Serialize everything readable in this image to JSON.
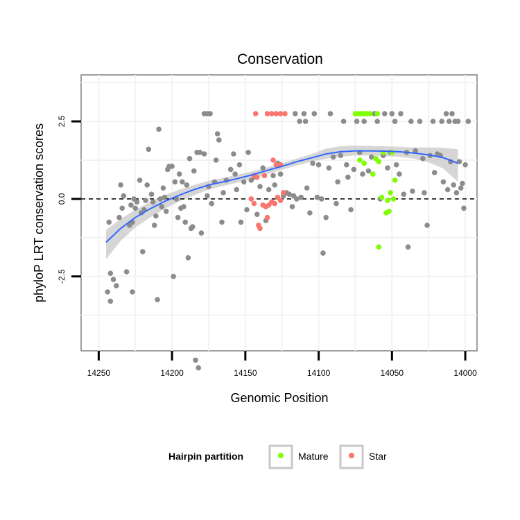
{
  "chart_data": {
    "type": "scatter",
    "title": "Conservation",
    "xlabel": "Genomic Position",
    "ylabel": "phyloP LRT conservation scores",
    "xlim": [
      14262,
      13992
    ],
    "ylim": [
      -4.9,
      4.0
    ],
    "x_reversed": true,
    "x_ticks": [
      14250,
      14200,
      14150,
      14100,
      14050,
      14000
    ],
    "x_tick_labels": [
      "14250",
      "14200",
      "14150",
      "14100",
      "14050",
      "14000"
    ],
    "y_ticks": [
      -2.5,
      0.0,
      2.5
    ],
    "y_tick_labels": [
      "-2.5",
      "0.0",
      "2.5"
    ],
    "reference_line": {
      "y": 0,
      "style": "dashed",
      "color": "#000000"
    },
    "legend": {
      "title": "Hairpin partition",
      "position": "bottom",
      "entries": [
        {
          "label": "Mature",
          "color": "#7fff00"
        },
        {
          "label": "Star",
          "color": "#f8766d"
        }
      ]
    },
    "colors": {
      "other": "#8c8c8c",
      "Mature": "#7fff00",
      "Star": "#f8766d",
      "smooth": "#3366ff",
      "ribbon": "#c8c8c8",
      "grid": "#f2f2f2",
      "frame": "#7f7f7f"
    },
    "smooth": {
      "x": [
        14245,
        14235,
        14225,
        14215,
        14205,
        14195,
        14185,
        14175,
        14165,
        14155,
        14145,
        14135,
        14125,
        14115,
        14105,
        14095,
        14085,
        14075,
        14065,
        14055,
        14045,
        14035,
        14025,
        14015,
        14005
      ],
      "y": [
        -1.4,
        -0.95,
        -0.6,
        -0.32,
        -0.08,
        0.12,
        0.3,
        0.45,
        0.55,
        0.66,
        0.78,
        0.92,
        1.05,
        1.2,
        1.32,
        1.45,
        1.52,
        1.55,
        1.55,
        1.54,
        1.52,
        1.48,
        1.42,
        1.33,
        1.15
      ],
      "upper": [
        -1.0,
        -0.65,
        -0.35,
        -0.1,
        0.12,
        0.3,
        0.45,
        0.58,
        0.68,
        0.78,
        0.89,
        1.02,
        1.15,
        1.3,
        1.44,
        1.62,
        1.7,
        1.72,
        1.71,
        1.7,
        1.68,
        1.66,
        1.66,
        1.65,
        1.6
      ],
      "lower": [
        -1.95,
        -1.35,
        -0.92,
        -0.6,
        -0.32,
        -0.08,
        0.12,
        0.3,
        0.42,
        0.53,
        0.66,
        0.8,
        0.94,
        1.08,
        1.2,
        1.3,
        1.36,
        1.4,
        1.4,
        1.38,
        1.36,
        1.3,
        1.18,
        0.98,
        0.55
      ]
    },
    "series": [
      {
        "name": "Other",
        "points": [
          [
            14244,
            -3.0
          ],
          [
            14242,
            -2.4
          ],
          [
            14240,
            -2.6
          ],
          [
            14238,
            -2.8
          ],
          [
            14242,
            -3.3
          ],
          [
            14243,
            -0.75
          ],
          [
            14236,
            -0.6
          ],
          [
            14234,
            -0.3
          ],
          [
            14233,
            0.1
          ],
          [
            14235,
            0.45
          ],
          [
            14231,
            -2.35
          ],
          [
            14229,
            -0.85
          ],
          [
            14228,
            -0.2
          ],
          [
            14227,
            -0.75
          ],
          [
            14226,
            0.0
          ],
          [
            14225,
            -0.3
          ],
          [
            14224,
            -0.1
          ],
          [
            14227,
            -3.0
          ],
          [
            14222,
            0.6
          ],
          [
            14221,
            -0.45
          ],
          [
            14220,
            -1.7
          ],
          [
            14219,
            -0.35
          ],
          [
            14218,
            -0.05
          ],
          [
            14217,
            0.45
          ],
          [
            14216,
            1.6
          ],
          [
            14214,
            0.15
          ],
          [
            14213,
            -0.1
          ],
          [
            14212,
            -0.85
          ],
          [
            14211,
            -0.55
          ],
          [
            14210,
            -3.25
          ],
          [
            14209,
            2.25
          ],
          [
            14208,
            0.0
          ],
          [
            14207,
            -0.25
          ],
          [
            14206,
            0.35
          ],
          [
            14205,
            0.05
          ],
          [
            14204,
            -0.4
          ],
          [
            14203,
            0.95
          ],
          [
            14202,
            1.05
          ],
          [
            14200,
            1.05
          ],
          [
            14199,
            -2.5
          ],
          [
            14198,
            0.55
          ],
          [
            14197,
            0.0
          ],
          [
            14196,
            -0.6
          ],
          [
            14195,
            0.8
          ],
          [
            14194,
            -0.3
          ],
          [
            14193,
            0.55
          ],
          [
            14192,
            -0.25
          ],
          [
            14191,
            -0.75
          ],
          [
            14190,
            0.45
          ],
          [
            14189,
            -1.9
          ],
          [
            14188,
            1.3
          ],
          [
            14187,
            -0.95
          ],
          [
            14186,
            -0.9
          ],
          [
            14185,
            0.9
          ],
          [
            14184,
            -5.2
          ],
          [
            14183,
            1.5
          ],
          [
            14182,
            -5.45
          ],
          [
            14181,
            1.5
          ],
          [
            14180,
            -1.1
          ],
          [
            14178,
            1.45
          ],
          [
            14178,
            2.75
          ],
          [
            14176,
            2.75
          ],
          [
            14174,
            2.75
          ],
          [
            14176,
            0.1
          ],
          [
            14175,
            0.4
          ],
          [
            14173,
            -0.15
          ],
          [
            14171,
            0.55
          ],
          [
            14170,
            1.25
          ],
          [
            14169,
            2.1
          ],
          [
            14168,
            1.9
          ],
          [
            14166,
            -0.75
          ],
          [
            14165,
            0.2
          ],
          [
            14163,
            0.6
          ],
          [
            14160,
            0.95
          ],
          [
            14158,
            1.45
          ],
          [
            14157,
            0.8
          ],
          [
            14156,
            0.3
          ],
          [
            14154,
            1.1
          ],
          [
            14153,
            -0.75
          ],
          [
            14151,
            0.55
          ],
          [
            14149,
            -0.35
          ],
          [
            14148,
            1.5
          ],
          [
            14146,
            0.6
          ],
          [
            14144,
            0.7
          ],
          [
            14142,
            -0.5
          ],
          [
            14140,
            0.4
          ],
          [
            14138,
            1.0
          ],
          [
            14136,
            -0.7
          ],
          [
            14134,
            0.3
          ],
          [
            14131,
            0.75
          ],
          [
            14130,
            0.45
          ],
          [
            14128,
            1.15
          ],
          [
            14126,
            0.8
          ],
          [
            14124,
            0.1
          ],
          [
            14122,
            0.2
          ],
          [
            14120,
            0.15
          ],
          [
            14118,
            -0.25
          ],
          [
            14117,
            0.1
          ],
          [
            14116,
            2.75
          ],
          [
            14115,
            0.0
          ],
          [
            14113,
            2.5
          ],
          [
            14112,
            0.05
          ],
          [
            14110,
            2.75
          ],
          [
            14109,
            2.5
          ],
          [
            14108,
            0.35
          ],
          [
            14106,
            -0.45
          ],
          [
            14104,
            1.15
          ],
          [
            14103,
            2.75
          ],
          [
            14101,
            0.05
          ],
          [
            14100,
            1.1
          ],
          [
            14098,
            0.0
          ],
          [
            14097,
            -1.75
          ],
          [
            14095,
            -0.6
          ],
          [
            14093,
            1.0
          ],
          [
            14092,
            2.75
          ],
          [
            14090,
            1.35
          ],
          [
            14088,
            -0.15
          ],
          [
            14087,
            0.55
          ],
          [
            14085,
            1.4
          ],
          [
            14083,
            2.5
          ],
          [
            14081,
            1.1
          ],
          [
            14080,
            0.7
          ],
          [
            14078,
            -0.35
          ],
          [
            14076,
            0.95
          ],
          [
            14074,
            2.5
          ],
          [
            14072,
            1.5
          ],
          [
            14070,
            0.8
          ],
          [
            14069,
            2.5
          ],
          [
            14066,
            0.9
          ],
          [
            14064,
            1.35
          ],
          [
            14062,
            2.75
          ],
          [
            14060,
            2.5
          ],
          [
            14058,
            0.0
          ],
          [
            14056,
            1.4
          ],
          [
            14055,
            2.75
          ],
          [
            14053,
            1.0
          ],
          [
            14051,
            1.5
          ],
          [
            14050,
            2.75
          ],
          [
            14048,
            2.5
          ],
          [
            14047,
            1.1
          ],
          [
            14045,
            0.8
          ],
          [
            14044,
            2.75
          ],
          [
            14042,
            0.15
          ],
          [
            14040,
            1.5
          ],
          [
            14039,
            -1.55
          ],
          [
            14037,
            2.5
          ],
          [
            14036,
            0.25
          ],
          [
            14034,
            1.55
          ],
          [
            14031,
            2.5
          ],
          [
            14029,
            1.3
          ],
          [
            14028,
            0.2
          ],
          [
            14026,
            -0.85
          ],
          [
            14024,
            1.4
          ],
          [
            14022,
            2.5
          ],
          [
            14021,
            0.85
          ],
          [
            14019,
            1.45
          ],
          [
            14017,
            1.4
          ],
          [
            14016,
            2.5
          ],
          [
            14015,
            0.55
          ],
          [
            14013,
            2.75
          ],
          [
            14012,
            0.3
          ],
          [
            14011,
            2.5
          ],
          [
            14010,
            1.2
          ],
          [
            14009,
            2.75
          ],
          [
            14008,
            0.45
          ],
          [
            14007,
            2.5
          ],
          [
            14006,
            0.2
          ],
          [
            14005,
            2.5
          ],
          [
            14004,
            1.2
          ],
          [
            14003,
            0.35
          ],
          [
            14002,
            0.5
          ],
          [
            14001,
            -0.3
          ],
          [
            14000,
            1.1
          ],
          [
            13998,
            2.5
          ]
        ]
      },
      {
        "name": "Mature",
        "points": [
          [
            14075,
            2.75
          ],
          [
            14073,
            2.75
          ],
          [
            14071,
            2.75
          ],
          [
            14069,
            2.75
          ],
          [
            14067,
            2.75
          ],
          [
            14065,
            2.75
          ],
          [
            14060,
            2.75
          ],
          [
            14056,
            1.5
          ],
          [
            14063,
            0.8
          ],
          [
            14069,
            1.15
          ],
          [
            14072,
            1.25
          ],
          [
            14057,
            0.05
          ],
          [
            14059,
            1.2
          ],
          [
            14054,
            -0.45
          ],
          [
            14053,
            -0.05
          ],
          [
            14052,
            -0.4
          ],
          [
            14051,
            0.2
          ],
          [
            14050,
            1.5
          ],
          [
            14049,
            0.0
          ],
          [
            14048,
            0.6
          ],
          [
            14059,
            -1.55
          ],
          [
            14061,
            1.3
          ]
        ]
      },
      {
        "name": "Star",
        "points": [
          [
            14143,
            2.75
          ],
          [
            14135,
            2.75
          ],
          [
            14132,
            2.75
          ],
          [
            14129,
            2.75
          ],
          [
            14126,
            2.75
          ],
          [
            14123,
            2.75
          ],
          [
            14131,
            1.25
          ],
          [
            14129,
            1.1
          ],
          [
            14126,
            1.1
          ],
          [
            14144,
            0.75
          ],
          [
            14142,
            0.7
          ],
          [
            14137,
            0.75
          ],
          [
            14146,
            0.0
          ],
          [
            14144,
            -0.15
          ],
          [
            14141,
            -0.85
          ],
          [
            14140,
            -0.95
          ],
          [
            14138,
            -0.2
          ],
          [
            14136,
            -0.25
          ],
          [
            14134,
            -0.2
          ],
          [
            14132,
            -0.1
          ],
          [
            14130,
            -0.15
          ],
          [
            14128,
            0.05
          ],
          [
            14126,
            -0.05
          ],
          [
            14124,
            0.2
          ],
          [
            14135,
            -0.6
          ]
        ]
      }
    ]
  }
}
